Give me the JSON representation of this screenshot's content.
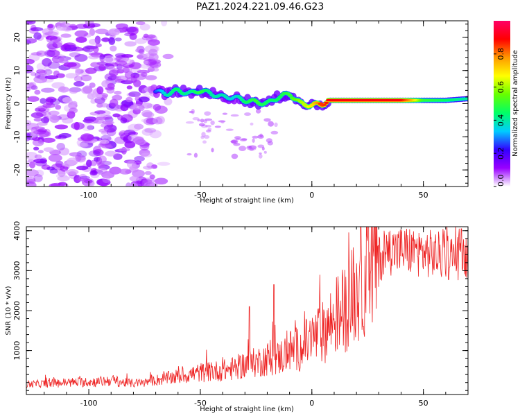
{
  "figure_title": "PAZ1.2024.221.09.46.G23",
  "chart_data": [
    {
      "type": "heatmap",
      "xlabel": "Height of straight line (km)",
      "ylabel": "Frequency (Hz)",
      "xlim": [
        -128,
        70
      ],
      "ylim": [
        -25,
        25
      ],
      "xticks": [
        -100,
        -50,
        0,
        50
      ],
      "yticks": [
        -20,
        -10,
        0,
        10,
        20
      ],
      "colorbar": {
        "label": "Normalized spectral amplitude",
        "range": [
          0,
          1
        ],
        "ticks": [
          "0.0",
          "0.2",
          "0.4",
          "0.6",
          "0.8"
        ],
        "colormap": [
          "#ffffff",
          "#9900ff",
          "#3300ff",
          "#00ccff",
          "#00ff66",
          "#66ff00",
          "#ffff00",
          "#ff9900",
          "#ff0000",
          "#ff0066"
        ]
      },
      "ridge": {
        "x": [
          -72,
          -65,
          -60,
          -55,
          -50,
          -45,
          -40,
          -35,
          -30,
          -25,
          -20,
          -15,
          -10,
          -5,
          0,
          5,
          8,
          20,
          40,
          45,
          50,
          60,
          70
        ],
        "frequency": [
          4,
          3,
          4,
          3,
          4,
          3,
          2,
          2,
          1,
          0.5,
          0,
          2,
          3,
          0,
          -0.5,
          0,
          1,
          1,
          1,
          1,
          1,
          1,
          1.5
        ],
        "amplitude": [
          0.2,
          0.4,
          0.45,
          0.4,
          0.5,
          0.4,
          0.4,
          0.35,
          0.45,
          0.5,
          0.45,
          0.45,
          0.5,
          0.6,
          0.7,
          0.85,
          0.9,
          0.9,
          0.9,
          0.75,
          0.5,
          0.45,
          0.4
        ]
      }
    },
    {
      "type": "line",
      "xlabel": "Height of straight line (km)",
      "ylabel": "SNR (10 * v/v)",
      "xlim": [
        -128,
        70
      ],
      "ylim": [
        -100,
        4100
      ],
      "xticks": [
        -100,
        -50,
        0,
        50
      ],
      "yticks": [
        1000,
        2000,
        3000,
        4000
      ],
      "color": "#ee2222",
      "envelope": {
        "x": [
          -128,
          -110,
          -95,
          -90,
          -85,
          -80,
          -75,
          -70,
          -60,
          -50,
          -40,
          -35,
          -30,
          -25,
          -20,
          -15,
          -10,
          -5,
          0,
          5,
          10,
          15,
          20,
          25,
          30,
          35,
          40,
          45,
          50,
          55,
          60,
          65,
          70
        ],
        "snr": [
          150,
          200,
          220,
          260,
          200,
          180,
          200,
          260,
          350,
          450,
          500,
          550,
          650,
          700,
          800,
          800,
          1000,
          1050,
          1300,
          1450,
          1800,
          2100,
          2500,
          3000,
          3300,
          3500,
          3500,
          3500,
          3450,
          3400,
          3350,
          3350,
          3400
        ]
      },
      "spikes": [
        {
          "x": -28,
          "snr": 2100
        },
        {
          "x": -17,
          "snr": 2650
        },
        {
          "x": 35,
          "snr": 4000
        },
        {
          "x": 67,
          "snr": 4050
        }
      ]
    }
  ]
}
